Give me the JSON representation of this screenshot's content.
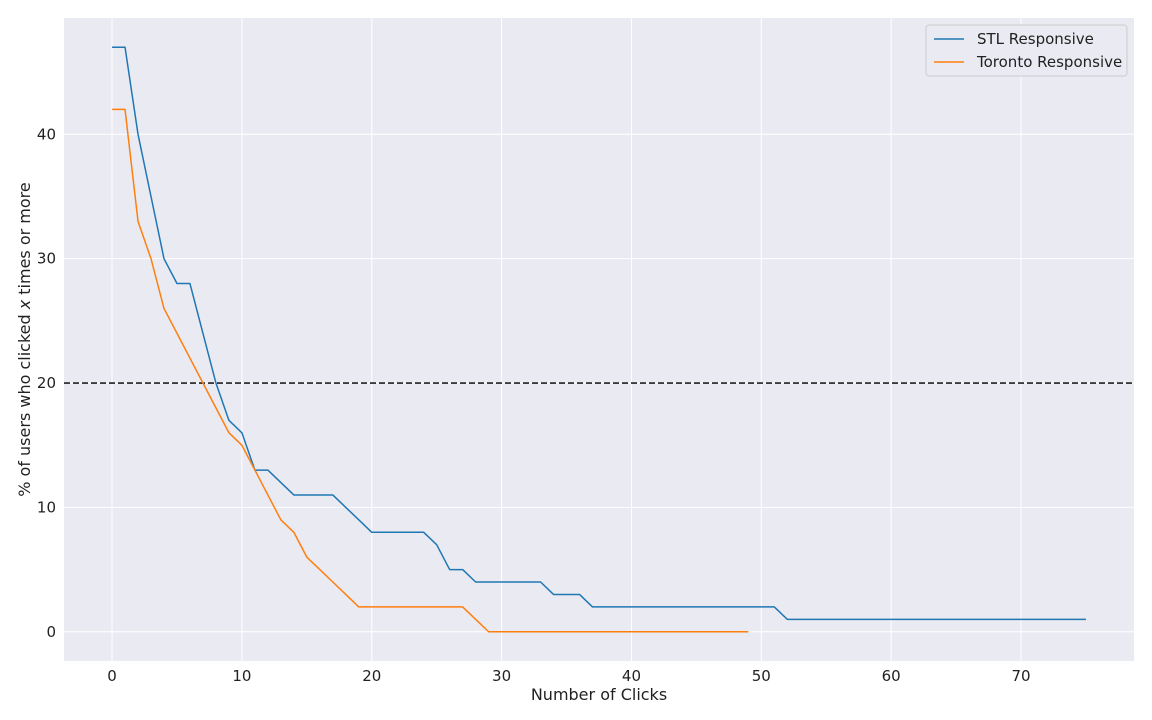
{
  "chart_data": {
    "type": "line",
    "xlabel": "Number of Clicks",
    "ylabel_prefix": "% of users who clicked ",
    "ylabel_var": "x",
    "ylabel_suffix": " times or more",
    "xlim": [
      -3.7,
      78.7
    ],
    "ylim": [
      -2.35,
      49.35
    ],
    "xticks": [
      0,
      10,
      20,
      30,
      40,
      50,
      60,
      70
    ],
    "yticks": [
      0,
      10,
      20,
      30,
      40
    ],
    "grid": true,
    "legend_position": "top-right",
    "reference_line": {
      "y": 20,
      "style": "dashed",
      "color": "#222222"
    },
    "series": [
      {
        "name": "STL Responsive",
        "color": "#1f77b4",
        "x": [
          0,
          1,
          2,
          3,
          4,
          5,
          6,
          7,
          8,
          9,
          10,
          11,
          12,
          13,
          14,
          15,
          16,
          17,
          18,
          19,
          20,
          21,
          22,
          23,
          24,
          25,
          26,
          27,
          28,
          29,
          30,
          31,
          32,
          33,
          34,
          35,
          36,
          37,
          38,
          39,
          40,
          41,
          42,
          43,
          44,
          45,
          46,
          47,
          48,
          49,
          50,
          51,
          52,
          53,
          54,
          55,
          56,
          57,
          58,
          59,
          60,
          61,
          62,
          63,
          64,
          65,
          66,
          67,
          68,
          69,
          70,
          71,
          72,
          73,
          74,
          75
        ],
        "y": [
          47,
          47,
          40,
          35,
          30,
          28,
          28,
          24,
          20,
          17,
          16,
          13,
          13,
          12,
          11,
          11,
          11,
          11,
          10,
          9,
          8,
          8,
          8,
          8,
          8,
          7,
          5,
          5,
          4,
          4,
          4,
          4,
          4,
          4,
          3,
          3,
          3,
          2,
          2,
          2,
          2,
          2,
          2,
          2,
          2,
          2,
          2,
          2,
          2,
          2,
          2,
          2,
          1,
          1,
          1,
          1,
          1,
          1,
          1,
          1,
          1,
          1,
          1,
          1,
          1,
          1,
          1,
          1,
          1,
          1,
          1,
          1,
          1,
          1,
          1,
          1
        ]
      },
      {
        "name": "Toronto Responsive",
        "color": "#ff7f0e",
        "x": [
          0,
          1,
          2,
          3,
          4,
          5,
          6,
          7,
          8,
          9,
          10,
          11,
          12,
          13,
          14,
          15,
          16,
          17,
          18,
          19,
          20,
          21,
          22,
          23,
          24,
          25,
          26,
          27,
          28,
          29,
          30,
          31,
          32,
          33,
          34,
          35,
          36,
          37,
          38,
          39,
          40,
          41,
          42,
          43,
          44,
          45,
          46,
          47,
          48,
          49
        ],
        "y": [
          42,
          42,
          33,
          30,
          26,
          24,
          22,
          20,
          18,
          16,
          15,
          13,
          11,
          9,
          8,
          6,
          5,
          4,
          3,
          2,
          2,
          2,
          2,
          2,
          2,
          2,
          2,
          2,
          1,
          0,
          0,
          0,
          0,
          0,
          0,
          0,
          0,
          0,
          0,
          0,
          0,
          0,
          0,
          0,
          0,
          0,
          0,
          0,
          0,
          0
        ]
      }
    ]
  }
}
